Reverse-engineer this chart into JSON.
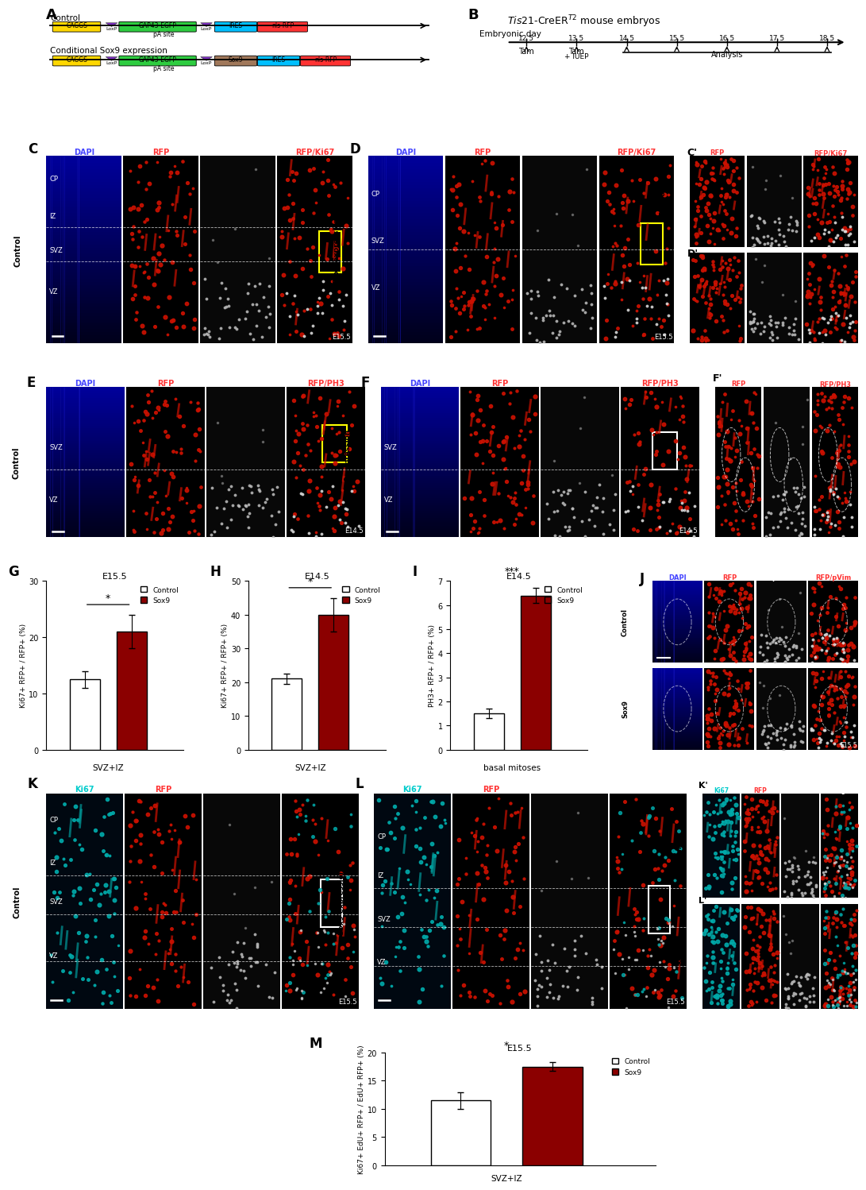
{
  "bar_G": {
    "label": "G",
    "subtitle": "E15.5",
    "ylabel": "Ki67+ RFP+ / RFP+ (%)",
    "xlabel": "SVZ+IZ",
    "ylim": [
      0,
      30
    ],
    "yticks": [
      0,
      10,
      20,
      30
    ],
    "control_val": 12.5,
    "control_err": 1.5,
    "sox9_val": 21.0,
    "sox9_err": 3.0,
    "significance": "*"
  },
  "bar_H": {
    "label": "H",
    "subtitle": "E14.5",
    "ylabel": "Ki67+ RFP+ / RFP+ (%)",
    "xlabel": "SVZ+IZ",
    "ylim": [
      0,
      50
    ],
    "yticks": [
      0,
      10,
      20,
      30,
      40,
      50
    ],
    "control_val": 21.0,
    "control_err": 1.5,
    "sox9_val": 40.0,
    "sox9_err": 5.0,
    "significance": "*"
  },
  "bar_I": {
    "label": "I",
    "subtitle": "E14.5",
    "ylabel": "PH3+ RFP+ / RFP+ (%)",
    "xlabel": "basal mitoses",
    "ylim": [
      0,
      7
    ],
    "yticks": [
      0,
      1,
      2,
      3,
      4,
      5,
      6,
      7
    ],
    "control_val": 1.5,
    "control_err": 0.2,
    "sox9_val": 6.4,
    "sox9_err": 0.3,
    "significance": "***"
  },
  "bar_M": {
    "label": "M",
    "subtitle": "E15.5",
    "ylabel": "Ki67+ EdU+ RFP+ / EdU+ RFP+ (%)",
    "xlabel": "SVZ+IZ",
    "ylim": [
      0,
      20
    ],
    "yticks": [
      0,
      5,
      10,
      15,
      20
    ],
    "control_val": 11.5,
    "control_err": 1.5,
    "sox9_val": 17.5,
    "sox9_err": 0.8,
    "significance": "*"
  },
  "colors": {
    "control_bar": "#FFFFFF",
    "sox9_bar": "#8B0000",
    "bar_edge": "#000000"
  }
}
